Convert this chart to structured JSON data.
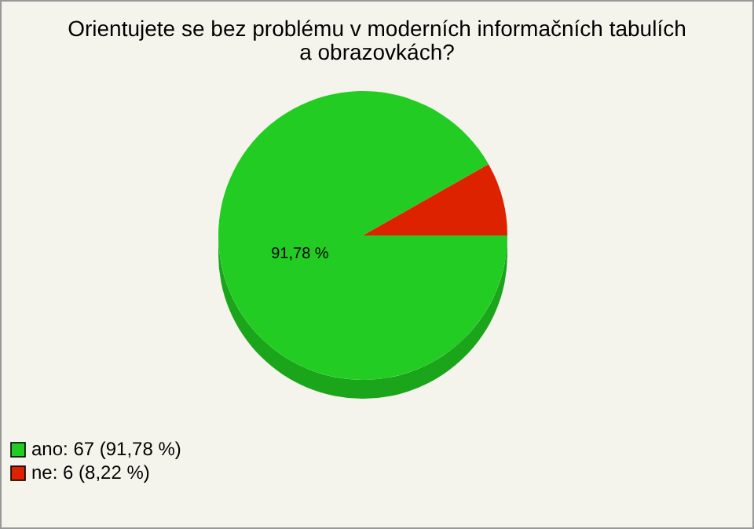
{
  "chart_data": {
    "type": "pie",
    "title": "Orientujete se bez problému v moderních informačních tabulích a obrazovkách?",
    "categories": [
      "ano: 67 (91,78 %)",
      "ne: 6 (8,22 %)"
    ],
    "values": [
      91.78,
      8.22
    ],
    "colors": [
      "#22cc22",
      "#dd2200"
    ],
    "value_labels": [
      "91,78 %",
      null
    ],
    "legend": "bottom left"
  }
}
